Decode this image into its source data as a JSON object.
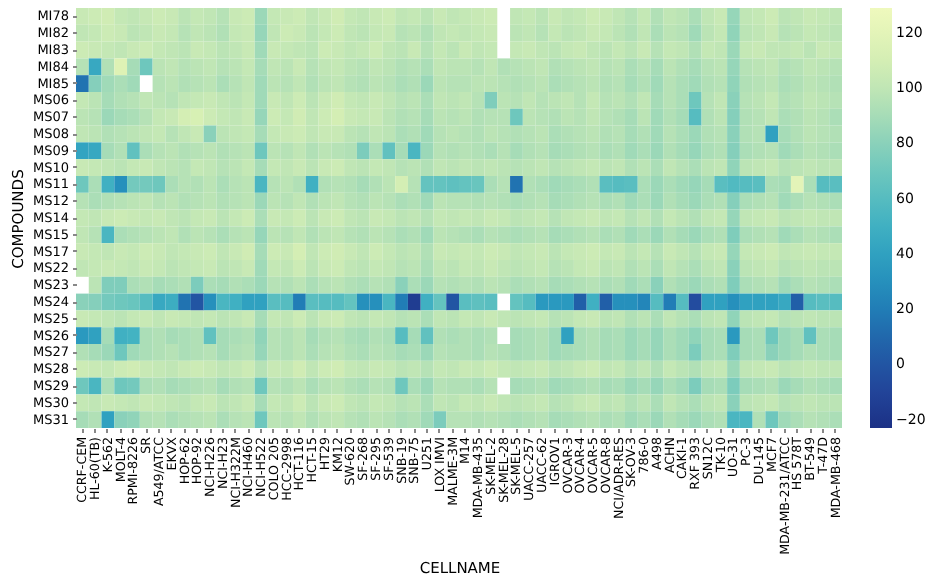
{
  "chart_data": {
    "type": "heatmap",
    "xlabel": "CELLNAME",
    "ylabel": "COMPOUNDS",
    "categories": [
      "CCRF-CEM",
      "HL-60(TB)",
      "K-562",
      "MOLT-4",
      "RPMI-8226",
      "SR",
      "A549/ATCC",
      "EKVX",
      "HOP-62",
      "HOP-92",
      "NCI-H226",
      "NCI-H23",
      "NCI-H322M",
      "NCI-H460",
      "NCI-H522",
      "COLO 205",
      "HCC-2998",
      "HCT-116",
      "HCT-15",
      "HT29",
      "KM12",
      "SW-620",
      "SF-268",
      "SF-295",
      "SF-539",
      "SNB-19",
      "SNB-75",
      "U251",
      "LOX IMVI",
      "MALME-3M",
      "M14",
      "MDA-MB-435",
      "SK-MEL-2",
      "SK-MEL-28",
      "SK-MEL-5",
      "UACC-257",
      "UACC-62",
      "IGROV1",
      "OVCAR-3",
      "OVCAR-4",
      "OVCAR-5",
      "OVCAR-8",
      "NCI/ADR-RES",
      "SK-OV-3",
      "786-0",
      "A498",
      "ACHN",
      "CAKI-1",
      "RXF 393",
      "SN12C",
      "TK-10",
      "UO-31",
      "PC-3",
      "DU-145",
      "MCF7",
      "MDA-MB-231/ATCC",
      "HS 578T",
      "BT-549",
      "T-47D",
      "MDA-MB-468"
    ],
    "y_categories": [
      "MI78",
      "MI82",
      "MI83",
      "MI84",
      "MI85",
      "MS06",
      "MS07",
      "MS08",
      "MS09",
      "MS10",
      "MS11",
      "MS12",
      "MS14",
      "MS15",
      "MS17",
      "MS22",
      "MS23",
      "MS24",
      "MS25",
      "MS26",
      "MS27",
      "MS28",
      "MS29",
      "MS30",
      "MS31"
    ],
    "cells": [
      [
        104,
        106,
        108,
        102,
        100,
        103,
        106,
        104,
        98,
        102,
        100,
        96,
        104,
        106,
        86,
        102,
        104,
        106,
        100,
        104,
        108,
        102,
        100,
        104,
        106,
        100,
        102,
        98,
        104,
        100,
        102,
        104,
        106,
        null,
        100,
        102,
        98,
        104,
        100,
        102,
        106,
        104,
        100,
        96,
        102,
        94,
        100,
        98,
        92,
        100,
        104,
        84,
        100,
        102,
        106,
        98,
        100,
        104,
        102,
        100
      ],
      [
        100,
        102,
        106,
        104,
        98,
        100,
        104,
        102,
        96,
        100,
        98,
        94,
        102,
        104,
        84,
        100,
        106,
        104,
        98,
        102,
        106,
        100,
        98,
        102,
        104,
        96,
        98,
        94,
        100,
        102,
        100,
        102,
        104,
        null,
        98,
        100,
        96,
        102,
        98,
        100,
        104,
        102,
        98,
        94,
        100,
        92,
        98,
        96,
        88,
        98,
        102,
        82,
        98,
        100,
        104,
        96,
        98,
        102,
        100,
        98
      ],
      [
        106,
        104,
        102,
        100,
        104,
        106,
        102,
        100,
        98,
        104,
        102,
        98,
        100,
        104,
        88,
        104,
        102,
        100,
        98,
        106,
        104,
        100,
        102,
        106,
        100,
        98,
        104,
        96,
        102,
        98,
        104,
        100,
        102,
        null,
        102,
        104,
        100,
        98,
        102,
        104,
        100,
        98,
        102,
        98,
        104,
        96,
        102,
        100,
        94,
        102,
        100,
        86,
        102,
        104,
        100,
        100,
        102,
        98,
        104,
        102
      ],
      [
        96,
        45,
        94,
        116,
        90,
        70,
        98,
        100,
        96,
        98,
        100,
        96,
        98,
        102,
        90,
        100,
        98,
        104,
        96,
        100,
        102,
        98,
        96,
        100,
        98,
        94,
        96,
        92,
        100,
        98,
        98,
        96,
        100,
        94,
        96,
        98,
        100,
        94,
        96,
        98,
        100,
        96,
        98,
        92,
        96,
        90,
        98,
        94,
        90,
        96,
        98,
        84,
        96,
        98,
        100,
        94,
        96,
        100,
        98,
        96
      ],
      [
        15,
        78,
        88,
        92,
        88,
        null,
        96,
        98,
        94,
        96,
        98,
        92,
        96,
        100,
        88,
        98,
        96,
        100,
        94,
        98,
        100,
        96,
        94,
        98,
        96,
        92,
        94,
        86,
        98,
        96,
        96,
        98,
        98,
        96,
        94,
        96,
        98,
        92,
        94,
        96,
        98,
        94,
        96,
        90,
        94,
        88,
        96,
        92,
        88,
        94,
        96,
        82,
        94,
        96,
        98,
        92,
        94,
        98,
        96,
        94
      ],
      [
        102,
        98,
        90,
        94,
        96,
        100,
        98,
        96,
        100,
        102,
        104,
        100,
        98,
        102,
        88,
        104,
        100,
        106,
        98,
        104,
        108,
        102,
        100,
        104,
        100,
        96,
        98,
        92,
        100,
        98,
        100,
        96,
        76,
        98,
        96,
        100,
        96,
        98,
        100,
        96,
        102,
        96,
        98,
        94,
        100,
        90,
        96,
        92,
        70,
        96,
        100,
        80,
        96,
        98,
        102,
        94,
        96,
        100,
        98,
        96
      ],
      [
        98,
        96,
        86,
        90,
        92,
        96,
        102,
        104,
        110,
        112,
        106,
        102,
        100,
        104,
        84,
        106,
        102,
        108,
        100,
        106,
        110,
        104,
        102,
        104,
        98,
        94,
        96,
        90,
        98,
        96,
        98,
        94,
        96,
        96,
        70,
        98,
        96,
        94,
        98,
        96,
        100,
        96,
        94,
        90,
        98,
        88,
        94,
        90,
        60,
        94,
        98,
        78,
        94,
        96,
        100,
        92,
        94,
        98,
        96,
        92
      ],
      [
        100,
        98,
        94,
        96,
        98,
        100,
        102,
        96,
        100,
        104,
        80,
        98,
        100,
        102,
        90,
        102,
        104,
        106,
        100,
        104,
        104,
        98,
        96,
        100,
        98,
        92,
        94,
        88,
        96,
        98,
        96,
        94,
        98,
        96,
        94,
        96,
        98,
        92,
        94,
        96,
        98,
        94,
        96,
        90,
        94,
        88,
        96,
        92,
        86,
        94,
        96,
        80,
        94,
        96,
        40,
        90,
        94,
        98,
        96,
        94
      ],
      [
        42,
        45,
        90,
        94,
        65,
        92,
        96,
        98,
        94,
        96,
        98,
        94,
        96,
        98,
        70,
        98,
        96,
        100,
        94,
        98,
        96,
        94,
        75,
        92,
        65,
        90,
        55,
        86,
        96,
        94,
        96,
        94,
        92,
        96,
        90,
        94,
        96,
        90,
        92,
        94,
        96,
        92,
        94,
        88,
        92,
        86,
        94,
        90,
        84,
        92,
        94,
        78,
        92,
        94,
        96,
        88,
        92,
        96,
        94,
        92
      ],
      [
        104,
        102,
        100,
        98,
        102,
        104,
        100,
        98,
        96,
        102,
        100,
        96,
        98,
        102,
        90,
        102,
        100,
        104,
        98,
        104,
        106,
        100,
        98,
        102,
        100,
        96,
        98,
        94,
        100,
        98,
        100,
        98,
        100,
        98,
        96,
        98,
        100,
        96,
        98,
        100,
        102,
        98,
        100,
        94,
        98,
        92,
        100,
        96,
        92,
        98,
        100,
        82,
        98,
        100,
        102,
        96,
        98,
        100,
        98,
        98
      ],
      [
        70,
        92,
        50,
        30,
        72,
        72,
        70,
        92,
        96,
        94,
        98,
        92,
        96,
        98,
        55,
        96,
        98,
        94,
        50,
        94,
        96,
        94,
        90,
        94,
        98,
        110,
        96,
        66,
        66,
        64,
        66,
        68,
        92,
        96,
        15,
        94,
        92,
        88,
        90,
        92,
        94,
        62,
        60,
        62,
        92,
        86,
        92,
        88,
        84,
        90,
        62,
        58,
        60,
        62,
        92,
        90,
        120,
        92,
        60,
        62
      ],
      [
        96,
        92,
        94,
        96,
        98,
        100,
        96,
        98,
        94,
        96,
        98,
        94,
        96,
        98,
        86,
        98,
        96,
        100,
        94,
        98,
        100,
        96,
        94,
        98,
        96,
        92,
        94,
        88,
        98,
        96,
        96,
        94,
        96,
        94,
        92,
        94,
        96,
        90,
        92,
        94,
        96,
        92,
        94,
        88,
        92,
        86,
        94,
        90,
        86,
        92,
        94,
        78,
        92,
        94,
        96,
        88,
        92,
        96,
        94,
        92
      ],
      [
        102,
        100,
        104,
        106,
        104,
        102,
        104,
        100,
        98,
        102,
        104,
        98,
        102,
        106,
        92,
        104,
        102,
        106,
        98,
        104,
        106,
        100,
        98,
        104,
        102,
        98,
        100,
        96,
        102,
        100,
        102,
        100,
        104,
        102,
        98,
        100,
        102,
        96,
        100,
        102,
        104,
        100,
        102,
        96,
        100,
        94,
        102,
        98,
        94,
        100,
        102,
        84,
        100,
        102,
        104,
        98,
        100,
        102,
        100,
        100
      ],
      [
        100,
        96,
        55,
        92,
        94,
        96,
        98,
        100,
        94,
        98,
        96,
        92,
        96,
        98,
        84,
        98,
        96,
        100,
        94,
        98,
        100,
        96,
        94,
        98,
        96,
        92,
        94,
        88,
        98,
        96,
        94,
        92,
        96,
        94,
        92,
        94,
        96,
        90,
        92,
        94,
        96,
        92,
        94,
        88,
        92,
        86,
        94,
        90,
        86,
        92,
        94,
        76,
        92,
        94,
        96,
        88,
        92,
        96,
        94,
        92
      ],
      [
        104,
        102,
        100,
        104,
        102,
        106,
        104,
        100,
        102,
        104,
        106,
        100,
        104,
        108,
        90,
        106,
        104,
        110,
        100,
        106,
        108,
        104,
        100,
        106,
        102,
        98,
        100,
        94,
        104,
        102,
        104,
        102,
        106,
        104,
        100,
        102,
        104,
        98,
        102,
        104,
        106,
        102,
        104,
        98,
        102,
        96,
        104,
        100,
        96,
        102,
        104,
        84,
        102,
        104,
        106,
        100,
        102,
        104,
        102,
        102
      ],
      [
        100,
        102,
        104,
        102,
        100,
        104,
        102,
        98,
        100,
        102,
        104,
        98,
        100,
        104,
        88,
        102,
        100,
        106,
        98,
        104,
        106,
        100,
        98,
        102,
        100,
        96,
        98,
        92,
        100,
        98,
        102,
        100,
        104,
        100,
        98,
        100,
        102,
        96,
        98,
        102,
        104,
        98,
        100,
        94,
        98,
        92,
        100,
        96,
        92,
        98,
        100,
        80,
        98,
        100,
        102,
        96,
        98,
        100,
        98,
        98
      ],
      [
        null,
        98,
        76,
        76,
        92,
        94,
        90,
        92,
        94,
        75,
        92,
        90,
        94,
        92,
        86,
        96,
        94,
        98,
        92,
        96,
        98,
        94,
        92,
        96,
        94,
        80,
        92,
        86,
        96,
        94,
        96,
        94,
        98,
        96,
        92,
        94,
        96,
        90,
        92,
        94,
        96,
        92,
        94,
        88,
        92,
        80,
        94,
        90,
        86,
        92,
        94,
        76,
        92,
        94,
        96,
        88,
        92,
        96,
        94,
        92
      ],
      [
        80,
        78,
        72,
        70,
        68,
        60,
        45,
        48,
        15,
        0,
        30,
        55,
        50,
        40,
        40,
        62,
        60,
        20,
        62,
        60,
        60,
        66,
        30,
        30,
        55,
        20,
        -15,
        50,
        66,
        0,
        62,
        64,
        62,
        null,
        66,
        60,
        35,
        35,
        35,
        5,
        50,
        5,
        30,
        30,
        25,
        60,
        20,
        60,
        -5,
        40,
        40,
        30,
        40,
        40,
        40,
        45,
        5,
        60,
        62,
        60
      ],
      [
        104,
        102,
        100,
        98,
        102,
        104,
        100,
        104,
        102,
        100,
        102,
        98,
        100,
        104,
        90,
        102,
        100,
        106,
        98,
        104,
        106,
        100,
        98,
        102,
        100,
        96,
        98,
        92,
        100,
        98,
        102,
        100,
        104,
        100,
        98,
        100,
        102,
        96,
        98,
        102,
        104,
        98,
        100,
        94,
        98,
        92,
        100,
        96,
        92,
        98,
        100,
        82,
        98,
        100,
        102,
        96,
        98,
        100,
        98,
        98
      ],
      [
        35,
        40,
        90,
        50,
        52,
        92,
        94,
        90,
        92,
        94,
        65,
        90,
        92,
        94,
        82,
        96,
        94,
        98,
        90,
        94,
        96,
        92,
        90,
        94,
        92,
        60,
        90,
        65,
        94,
        92,
        94,
        92,
        94,
        null,
        90,
        92,
        94,
        88,
        40,
        92,
        94,
        90,
        92,
        86,
        90,
        84,
        92,
        88,
        82,
        90,
        92,
        35,
        90,
        92,
        70,
        86,
        90,
        65,
        92,
        90
      ],
      [
        94,
        90,
        86,
        70,
        88,
        92,
        94,
        96,
        92,
        94,
        96,
        90,
        94,
        96,
        84,
        96,
        94,
        98,
        92,
        96,
        98,
        94,
        92,
        96,
        94,
        90,
        92,
        86,
        96,
        94,
        94,
        92,
        96,
        94,
        90,
        92,
        94,
        88,
        90,
        92,
        94,
        90,
        92,
        86,
        90,
        84,
        92,
        88,
        75,
        90,
        92,
        76,
        90,
        92,
        80,
        86,
        90,
        94,
        92,
        90
      ],
      [
        106,
        104,
        102,
        106,
        108,
        104,
        102,
        100,
        104,
        106,
        104,
        100,
        102,
        106,
        96,
        104,
        102,
        108,
        100,
        106,
        108,
        102,
        100,
        104,
        102,
        98,
        100,
        96,
        102,
        100,
        104,
        102,
        106,
        102,
        100,
        102,
        104,
        98,
        100,
        104,
        106,
        100,
        102,
        96,
        100,
        94,
        102,
        98,
        94,
        100,
        102,
        86,
        100,
        102,
        104,
        98,
        100,
        102,
        100,
        100
      ],
      [
        70,
        55,
        92,
        70,
        72,
        92,
        94,
        90,
        92,
        94,
        96,
        90,
        94,
        96,
        70,
        96,
        94,
        98,
        92,
        96,
        98,
        94,
        92,
        96,
        94,
        70,
        92,
        86,
        96,
        94,
        94,
        92,
        96,
        null,
        90,
        92,
        94,
        88,
        90,
        92,
        94,
        90,
        92,
        86,
        90,
        84,
        92,
        88,
        75,
        90,
        92,
        75,
        90,
        92,
        94,
        86,
        90,
        94,
        92,
        90
      ],
      [
        102,
        100,
        104,
        102,
        100,
        104,
        102,
        100,
        98,
        102,
        104,
        98,
        100,
        104,
        90,
        102,
        100,
        106,
        98,
        104,
        106,
        100,
        98,
        102,
        100,
        96,
        98,
        92,
        100,
        98,
        102,
        100,
        104,
        100,
        98,
        100,
        102,
        96,
        98,
        102,
        104,
        98,
        100,
        94,
        98,
        92,
        100,
        96,
        92,
        98,
        100,
        80,
        98,
        100,
        102,
        96,
        98,
        100,
        98,
        98
      ],
      [
        90,
        94,
        40,
        80,
        82,
        94,
        96,
        92,
        94,
        96,
        98,
        92,
        96,
        98,
        70,
        98,
        96,
        100,
        94,
        98,
        100,
        96,
        94,
        98,
        96,
        92,
        94,
        88,
        75,
        96,
        96,
        94,
        96,
        94,
        92,
        94,
        96,
        90,
        92,
        94,
        96,
        92,
        94,
        88,
        92,
        86,
        94,
        90,
        86,
        92,
        94,
        55,
        55,
        94,
        70,
        88,
        92,
        96,
        94,
        92
      ]
    ],
    "clim": [
      -23,
      129
    ],
    "cticks": [
      -20,
      0,
      20,
      40,
      60,
      80,
      100,
      120
    ]
  }
}
